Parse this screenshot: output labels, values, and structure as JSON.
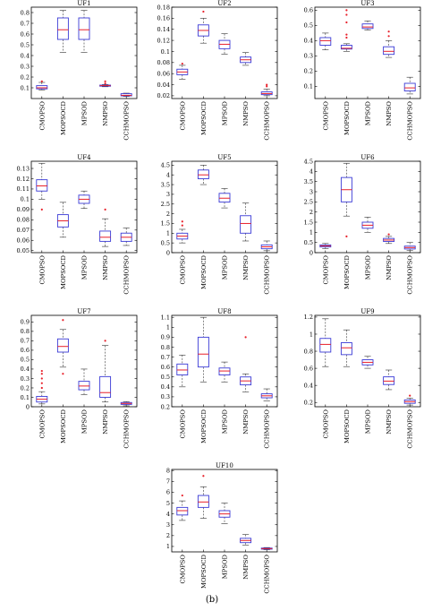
{
  "figure": {
    "caption": "(b)"
  },
  "colors": {
    "box": "#3a3ad6",
    "median": "#e8202a",
    "outlier": "#e8202a",
    "whisker": "#333333",
    "axis": "#000000"
  },
  "chart_data": [
    {
      "type": "box",
      "title": "UF1",
      "categories": [
        "CMOPSO",
        "MOPSOCD",
        "MPSOD",
        "NMPSO",
        "CCHMOPSO"
      ],
      "ylim": [
        0,
        0.85
      ],
      "yticks": [
        0.1,
        0.2,
        0.3,
        0.4,
        0.5,
        0.6,
        0.7,
        0.8
      ],
      "ytick_labels": [
        "0.1",
        "0.2",
        "0.3",
        "0.4",
        "0.5",
        "0.6",
        "0.7",
        "0.8"
      ],
      "boxes": [
        {
          "min": 0.08,
          "q1": 0.09,
          "median": 0.1,
          "q3": 0.12,
          "max": 0.15,
          "outliers": [
            0.16
          ]
        },
        {
          "min": 0.43,
          "q1": 0.55,
          "median": 0.64,
          "q3": 0.75,
          "max": 0.82,
          "outliers": []
        },
        {
          "min": 0.43,
          "q1": 0.55,
          "median": 0.64,
          "q3": 0.75,
          "max": 0.82,
          "outliers": []
        },
        {
          "min": 0.11,
          "q1": 0.115,
          "median": 0.12,
          "q3": 0.125,
          "max": 0.13,
          "outliers": [
            0.14,
            0.16
          ]
        },
        {
          "min": 0.02,
          "q1": 0.025,
          "median": 0.03,
          "q3": 0.045,
          "max": 0.05,
          "outliers": []
        }
      ]
    },
    {
      "type": "box",
      "title": "UF2",
      "categories": [
        "CMOPSO",
        "MOPSOCD",
        "MPSOD",
        "NMPSO",
        "CCHMOPSO"
      ],
      "ylim": [
        0.015,
        0.18
      ],
      "yticks": [
        0.02,
        0.04,
        0.06,
        0.08,
        0.1,
        0.12,
        0.14,
        0.16,
        0.18
      ],
      "ytick_labels": [
        "0.02",
        "0.04",
        "0.06",
        "0.08",
        "0.1",
        "0.12",
        "0.14",
        "0.16",
        "0.18"
      ],
      "boxes": [
        {
          "min": 0.05,
          "q1": 0.058,
          "median": 0.063,
          "q3": 0.068,
          "max": 0.075,
          "outliers": [
            0.078
          ]
        },
        {
          "min": 0.115,
          "q1": 0.128,
          "median": 0.138,
          "q3": 0.148,
          "max": 0.16,
          "outliers": [
            0.172
          ]
        },
        {
          "min": 0.095,
          "q1": 0.105,
          "median": 0.113,
          "q3": 0.12,
          "max": 0.132,
          "outliers": []
        },
        {
          "min": 0.075,
          "q1": 0.08,
          "median": 0.085,
          "q3": 0.09,
          "max": 0.098,
          "outliers": []
        },
        {
          "min": 0.02,
          "q1": 0.022,
          "median": 0.024,
          "q3": 0.027,
          "max": 0.032,
          "outliers": [
            0.037,
            0.04
          ]
        }
      ]
    },
    {
      "type": "box",
      "title": "UF3",
      "categories": [
        "CMOPSO",
        "MOPSOCD",
        "MPSOD",
        "NMPSO",
        "CCHMOPSO"
      ],
      "ylim": [
        0.02,
        0.62
      ],
      "yticks": [
        0.1,
        0.2,
        0.3,
        0.4,
        0.5,
        0.6
      ],
      "ytick_labels": [
        "0.1",
        "0.2",
        "0.3",
        "0.4",
        "0.5",
        "0.6"
      ],
      "boxes": [
        {
          "min": 0.34,
          "q1": 0.37,
          "median": 0.4,
          "q3": 0.42,
          "max": 0.45,
          "outliers": []
        },
        {
          "min": 0.33,
          "q1": 0.345,
          "median": 0.35,
          "q3": 0.37,
          "max": 0.38,
          "outliers": [
            0.42,
            0.44,
            0.52,
            0.57,
            0.6
          ]
        },
        {
          "min": 0.47,
          "q1": 0.48,
          "median": 0.49,
          "q3": 0.51,
          "max": 0.53,
          "outliers": []
        },
        {
          "min": 0.29,
          "q1": 0.31,
          "median": 0.33,
          "q3": 0.36,
          "max": 0.4,
          "outliers": [
            0.43,
            0.46
          ]
        },
        {
          "min": 0.05,
          "q1": 0.07,
          "median": 0.09,
          "q3": 0.12,
          "max": 0.16,
          "outliers": []
        }
      ]
    },
    {
      "type": "box",
      "title": "UF4",
      "categories": [
        "CMOPSO",
        "MOPSOCD",
        "MPSOD",
        "NMPSO",
        "CCHMOPSO"
      ],
      "ylim": [
        0.048,
        0.137
      ],
      "yticks": [
        0.05,
        0.06,
        0.07,
        0.08,
        0.09,
        0.1,
        0.11,
        0.12,
        0.13
      ],
      "ytick_labels": [
        "0.05",
        "0.06",
        "0.07",
        "0.08",
        "0.09",
        "0.1",
        "0.11",
        "0.12",
        "0.13"
      ],
      "boxes": [
        {
          "min": 0.1,
          "q1": 0.108,
          "median": 0.113,
          "q3": 0.119,
          "max": 0.135,
          "outliers": [
            0.09
          ]
        },
        {
          "min": 0.063,
          "q1": 0.073,
          "median": 0.079,
          "q3": 0.085,
          "max": 0.097,
          "outliers": []
        },
        {
          "min": 0.091,
          "q1": 0.096,
          "median": 0.1,
          "q3": 0.104,
          "max": 0.108,
          "outliers": []
        },
        {
          "min": 0.054,
          "q1": 0.059,
          "median": 0.063,
          "q3": 0.069,
          "max": 0.081,
          "outliers": [
            0.09
          ]
        },
        {
          "min": 0.055,
          "q1": 0.059,
          "median": 0.063,
          "q3": 0.067,
          "max": 0.072,
          "outliers": []
        }
      ]
    },
    {
      "type": "box",
      "title": "UF5",
      "categories": [
        "CMOPSO",
        "MOPSOCD",
        "MPSOD",
        "NMPSO",
        "CCHMOPSO"
      ],
      "ylim": [
        0,
        4.7
      ],
      "yticks": [
        0,
        0.5,
        1,
        1.5,
        2,
        2.5,
        3,
        3.5,
        4,
        4.5
      ],
      "ytick_labels": [
        "0",
        "0.5",
        "1",
        "1.5",
        "2",
        "2.5",
        "3",
        "3.5",
        "4",
        "4.5"
      ],
      "boxes": [
        {
          "min": 0.5,
          "q1": 0.7,
          "median": 0.85,
          "q3": 1.0,
          "max": 1.2,
          "outliers": [
            1.4,
            1.6
          ]
        },
        {
          "min": 3.5,
          "q1": 3.8,
          "median": 4.0,
          "q3": 4.25,
          "max": 4.5,
          "outliers": []
        },
        {
          "min": 2.3,
          "q1": 2.6,
          "median": 2.8,
          "q3": 3.05,
          "max": 3.3,
          "outliers": []
        },
        {
          "min": 0.6,
          "q1": 1.0,
          "median": 1.5,
          "q3": 1.9,
          "max": 2.55,
          "outliers": []
        },
        {
          "min": 0.1,
          "q1": 0.2,
          "median": 0.3,
          "q3": 0.4,
          "max": 0.6,
          "outliers": []
        }
      ]
    },
    {
      "type": "box",
      "title": "UF6",
      "categories": [
        "CMOPSO",
        "MOPSOCD",
        "MPSOD",
        "NMPSO",
        "CCHMOPSO"
      ],
      "ylim": [
        0,
        4.5
      ],
      "yticks": [
        0,
        0.5,
        1,
        1.5,
        2,
        2.5,
        3,
        3.5,
        4,
        4.5
      ],
      "ytick_labels": [
        "0",
        "0.5",
        "1",
        "1.5",
        "2",
        "2.5",
        "3",
        "3.5",
        "4",
        "4.5"
      ],
      "boxes": [
        {
          "min": 0.2,
          "q1": 0.28,
          "median": 0.33,
          "q3": 0.38,
          "max": 0.45,
          "outliers": []
        },
        {
          "min": 1.8,
          "q1": 2.5,
          "median": 3.1,
          "q3": 3.7,
          "max": 4.4,
          "outliers": [
            0.8
          ]
        },
        {
          "min": 1.0,
          "q1": 1.2,
          "median": 1.35,
          "q3": 1.5,
          "max": 1.75,
          "outliers": []
        },
        {
          "min": 0.45,
          "q1": 0.55,
          "median": 0.62,
          "q3": 0.7,
          "max": 0.8,
          "outliers": [
            0.9
          ]
        },
        {
          "min": 0.1,
          "q1": 0.18,
          "median": 0.25,
          "q3": 0.32,
          "max": 0.5,
          "outliers": []
        }
      ]
    },
    {
      "type": "box",
      "title": "UF7",
      "categories": [
        "CMOPSO",
        "MOPSOCD",
        "MPSOD",
        "NMPSO",
        "CCHMOPSO"
      ],
      "ylim": [
        0,
        0.97
      ],
      "yticks": [
        0,
        0.1,
        0.2,
        0.3,
        0.4,
        0.5,
        0.6,
        0.7,
        0.8,
        0.9
      ],
      "ytick_labels": [
        "0",
        "0.1",
        "0.2",
        "0.3",
        "0.4",
        "0.5",
        "0.6",
        "0.7",
        "0.8",
        "0.9"
      ],
      "boxes": [
        {
          "min": 0.03,
          "q1": 0.05,
          "median": 0.08,
          "q3": 0.11,
          "max": 0.16,
          "outliers": [
            0.2,
            0.25,
            0.3,
            0.35,
            0.38
          ]
        },
        {
          "min": 0.42,
          "q1": 0.58,
          "median": 0.64,
          "q3": 0.72,
          "max": 0.82,
          "outliers": [
            0.35,
            0.92
          ]
        },
        {
          "min": 0.13,
          "q1": 0.18,
          "median": 0.22,
          "q3": 0.27,
          "max": 0.4,
          "outliers": []
        },
        {
          "min": 0.05,
          "q1": 0.1,
          "median": 0.15,
          "q3": 0.32,
          "max": 0.65,
          "outliers": [
            0.7
          ]
        },
        {
          "min": 0.01,
          "q1": 0.025,
          "median": 0.035,
          "q3": 0.045,
          "max": 0.055,
          "outliers": []
        }
      ]
    },
    {
      "type": "box",
      "title": "UF8",
      "categories": [
        "CMOPSO",
        "MOPSOCD",
        "MPSOD",
        "NMPSO",
        "CCHMOPSO"
      ],
      "ylim": [
        0.2,
        1.12
      ],
      "yticks": [
        0.2,
        0.3,
        0.4,
        0.5,
        0.6,
        0.7,
        0.8,
        0.9,
        1,
        1.1
      ],
      "ytick_labels": [
        "0.2",
        "0.3",
        "0.4",
        "0.5",
        "0.6",
        "0.7",
        "0.8",
        "0.9",
        "1",
        "1.1"
      ],
      "boxes": [
        {
          "min": 0.4,
          "q1": 0.52,
          "median": 0.57,
          "q3": 0.63,
          "max": 0.72,
          "outliers": []
        },
        {
          "min": 0.45,
          "q1": 0.6,
          "median": 0.73,
          "q3": 0.9,
          "max": 1.1,
          "outliers": []
        },
        {
          "min": 0.45,
          "q1": 0.52,
          "median": 0.56,
          "q3": 0.59,
          "max": 0.65,
          "outliers": []
        },
        {
          "min": 0.35,
          "q1": 0.42,
          "median": 0.46,
          "q3": 0.5,
          "max": 0.53,
          "outliers": [
            0.9
          ]
        },
        {
          "min": 0.26,
          "q1": 0.29,
          "median": 0.31,
          "q3": 0.33,
          "max": 0.38,
          "outliers": []
        }
      ]
    },
    {
      "type": "box",
      "title": "UF9",
      "categories": [
        "CMOPSO",
        "MOPSOCD",
        "MPSOD",
        "NMPSO",
        "CCHMOPSO"
      ],
      "ylim": [
        0.15,
        1.22
      ],
      "yticks": [
        0.2,
        0.4,
        0.6,
        0.8,
        1,
        1.2
      ],
      "ytick_labels": [
        "0.2",
        "0.4",
        "0.6",
        "0.8",
        "1",
        "1.2"
      ],
      "boxes": [
        {
          "min": 0.62,
          "q1": 0.79,
          "median": 0.88,
          "q3": 0.95,
          "max": 1.18,
          "outliers": []
        },
        {
          "min": 0.62,
          "q1": 0.76,
          "median": 0.84,
          "q3": 0.9,
          "max": 1.05,
          "outliers": []
        },
        {
          "min": 0.6,
          "q1": 0.64,
          "median": 0.67,
          "q3": 0.7,
          "max": 0.74,
          "outliers": []
        },
        {
          "min": 0.35,
          "q1": 0.41,
          "median": 0.45,
          "q3": 0.5,
          "max": 0.58,
          "outliers": []
        },
        {
          "min": 0.17,
          "q1": 0.19,
          "median": 0.21,
          "q3": 0.23,
          "max": 0.25,
          "outliers": [
            0.28
          ]
        }
      ]
    },
    {
      "type": "box",
      "title": "UF10",
      "categories": [
        "CMOPSO",
        "MOPSOCD",
        "MPSOD",
        "NMPSO",
        "CCHMOPSO"
      ],
      "ylim": [
        0.5,
        8.1
      ],
      "yticks": [
        1,
        2,
        3,
        4,
        5,
        6,
        7,
        8
      ],
      "ytick_labels": [
        "1",
        "2",
        "3",
        "4",
        "5",
        "6",
        "7",
        "8"
      ],
      "boxes": [
        {
          "min": 3.4,
          "q1": 3.9,
          "median": 4.3,
          "q3": 4.6,
          "max": 5.2,
          "outliers": [
            5.7
          ]
        },
        {
          "min": 3.6,
          "q1": 4.6,
          "median": 5.1,
          "q3": 5.7,
          "max": 6.5,
          "outliers": [
            7.5
          ]
        },
        {
          "min": 3.1,
          "q1": 3.7,
          "median": 4.0,
          "q3": 4.3,
          "max": 5.0,
          "outliers": []
        },
        {
          "min": 1.1,
          "q1": 1.35,
          "median": 1.55,
          "q3": 1.75,
          "max": 2.1,
          "outliers": []
        },
        {
          "min": 0.7,
          "q1": 0.75,
          "median": 0.8,
          "q3": 0.85,
          "max": 0.9,
          "outliers": []
        }
      ]
    }
  ]
}
